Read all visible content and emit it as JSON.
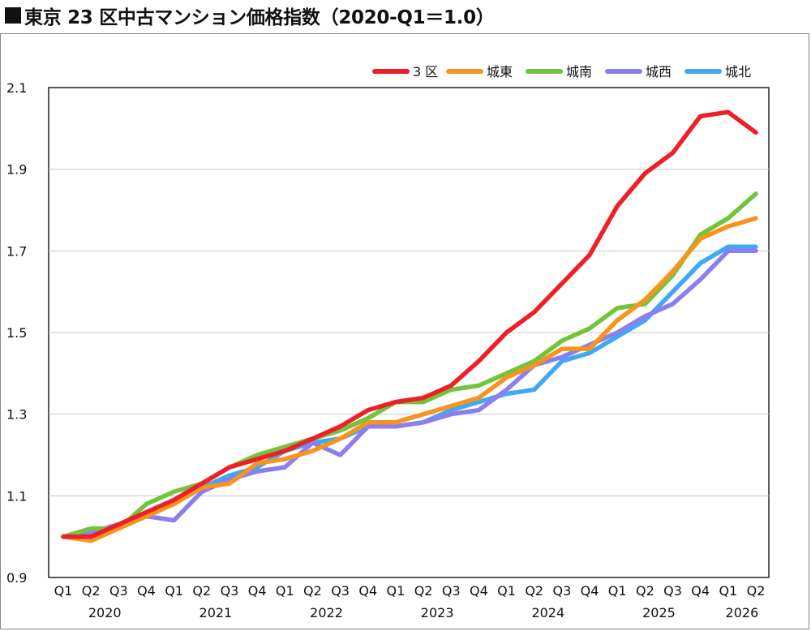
{
  "title": "東京 23 区中古マンション価格指数（2020-Q1＝1.0）",
  "chart_data": {
    "type": "line",
    "title": "東京 23 区中古マンション価格指数（2020-Q1＝1.0）",
    "xlabel": "",
    "ylabel": "",
    "ylim": [
      0.9,
      2.1
    ],
    "yticks": [
      "0.9",
      "1.1",
      "1.3",
      "1.5",
      "1.7",
      "1.9",
      "2.1"
    ],
    "grid": true,
    "legend_position": "top-right",
    "categories": [
      "Q1",
      "Q2",
      "Q3",
      "Q4",
      "Q1",
      "Q2",
      "Q3",
      "Q4",
      "Q1",
      "Q2",
      "Q3",
      "Q4",
      "Q1",
      "Q2",
      "Q3",
      "Q4",
      "Q1",
      "Q2",
      "Q3",
      "Q4",
      "Q1",
      "Q2",
      "Q3",
      "Q4",
      "Q1",
      "Q2"
    ],
    "year_labels": [
      "2020",
      "2021",
      "2022",
      "2023",
      "2024",
      "2025",
      "2026"
    ],
    "series": [
      {
        "name": "3 区",
        "color": "#ee2027",
        "values": [
          1.0,
          1.0,
          1.03,
          1.06,
          1.09,
          1.13,
          1.17,
          1.19,
          1.21,
          1.24,
          1.27,
          1.31,
          1.33,
          1.34,
          1.37,
          1.43,
          1.5,
          1.55,
          1.62,
          1.69,
          1.81,
          1.89,
          1.94,
          2.03,
          2.04,
          1.99
        ]
      },
      {
        "name": "城東",
        "color": "#f7941d",
        "values": [
          1.0,
          0.99,
          1.02,
          1.05,
          1.08,
          1.12,
          1.13,
          1.18,
          1.19,
          1.21,
          1.24,
          1.28,
          1.28,
          1.3,
          1.32,
          1.34,
          1.39,
          1.42,
          1.46,
          1.46,
          1.53,
          1.58,
          1.65,
          1.73,
          1.76,
          1.78
        ]
      },
      {
        "name": "城南",
        "color": "#72c43e",
        "values": [
          1.0,
          1.02,
          1.02,
          1.08,
          1.11,
          1.13,
          1.17,
          1.2,
          1.22,
          1.24,
          1.26,
          1.29,
          1.33,
          1.33,
          1.36,
          1.37,
          1.4,
          1.43,
          1.48,
          1.51,
          1.56,
          1.57,
          1.64,
          1.74,
          1.78,
          1.84
        ]
      },
      {
        "name": "城西",
        "color": "#8b7ff0",
        "values": [
          1.0,
          1.01,
          1.03,
          1.05,
          1.04,
          1.11,
          1.14,
          1.16,
          1.17,
          1.23,
          1.2,
          1.27,
          1.27,
          1.28,
          1.3,
          1.31,
          1.36,
          1.42,
          1.44,
          1.47,
          1.5,
          1.54,
          1.57,
          1.63,
          1.7,
          1.7
        ]
      },
      {
        "name": "城北",
        "color": "#3fa9f5",
        "values": [
          1.0,
          1.01,
          1.03,
          1.06,
          1.09,
          1.12,
          1.15,
          1.17,
          1.21,
          1.23,
          1.24,
          1.27,
          1.27,
          1.28,
          1.31,
          1.33,
          1.35,
          1.36,
          1.43,
          1.45,
          1.49,
          1.53,
          1.6,
          1.67,
          1.71,
          1.71
        ]
      }
    ]
  }
}
